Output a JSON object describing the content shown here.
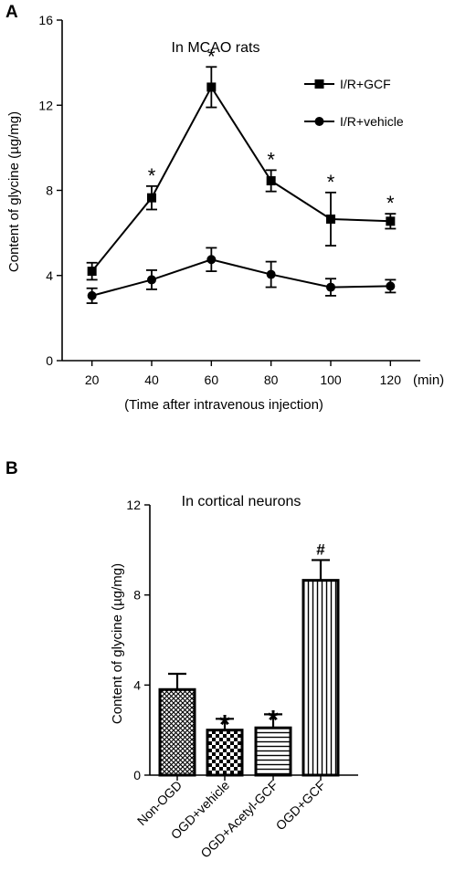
{
  "chart_data": [
    {
      "panel_label": "A",
      "type": "line",
      "title": "In MCAO rats",
      "xlabel": "(Time after intravenous injection)",
      "x_unit": "(min)",
      "ylabel": "Content of glycine (µg/mg)",
      "x": [
        20,
        40,
        60,
        80,
        100,
        120
      ],
      "x_ticks": [
        "20",
        "40",
        "60",
        "80",
        "100",
        "120"
      ],
      "xlim": [
        10,
        130
      ],
      "ylim": [
        0,
        16
      ],
      "y_ticks": [
        "0",
        "4",
        "8",
        "12",
        "16"
      ],
      "legend_position": "top-right",
      "series": [
        {
          "name": "I/R+GCF",
          "marker": "square",
          "values": [
            4.2,
            7.65,
            12.85,
            8.45,
            6.65,
            6.55
          ],
          "errors": [
            0.4,
            0.55,
            0.95,
            0.5,
            1.25,
            0.35
          ],
          "annotations": [
            "",
            "*",
            "*",
            "*",
            "*",
            "*"
          ]
        },
        {
          "name": "I/R+vehicle",
          "marker": "circle",
          "values": [
            3.05,
            3.8,
            4.75,
            4.05,
            3.45,
            3.5
          ],
          "errors": [
            0.35,
            0.45,
            0.55,
            0.6,
            0.4,
            0.3
          ],
          "annotations": [
            "",
            "",
            "",
            "",
            "",
            ""
          ]
        }
      ]
    },
    {
      "panel_label": "B",
      "type": "bar",
      "title": "In cortical neurons",
      "ylabel": "Content of glycine (µg/mg)",
      "ylim": [
        0,
        12
      ],
      "y_ticks": [
        "0",
        "4",
        "8",
        "12"
      ],
      "categories": [
        "Non-OGD",
        "OGD+vehicle",
        "OGD+Acetyl-GCF",
        "OGD+GCF"
      ],
      "values": [
        3.8,
        2.0,
        2.1,
        8.65
      ],
      "errors": [
        0.7,
        0.5,
        0.6,
        0.9
      ],
      "patterns": [
        "crosshatch",
        "checker",
        "horizontal",
        "vertical"
      ],
      "annotations": [
        "",
        "*",
        "*",
        "#"
      ]
    }
  ]
}
